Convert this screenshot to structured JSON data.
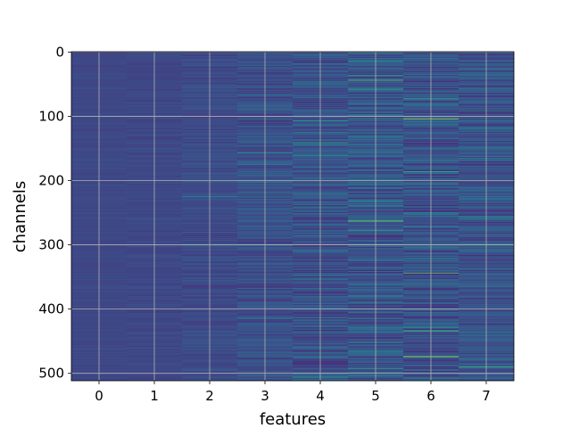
{
  "chart_data": {
    "type": "heatmap",
    "title": "",
    "xlabel": "features",
    "ylabel": "channels",
    "n_rows": 512,
    "x_categories": [
      "0",
      "1",
      "2",
      "3",
      "4",
      "5",
      "6",
      "7"
    ],
    "y_ticks": [
      0,
      100,
      200,
      300,
      400,
      500
    ],
    "y_tick_labels": [
      "0",
      "100",
      "200",
      "300",
      "400",
      "500"
    ],
    "ylim": [
      511.5,
      -0.5
    ],
    "grid": true,
    "colormap": "viridis",
    "column_baseline": [
      0.22,
      0.22,
      0.23,
      0.25,
      0.26,
      0.27,
      0.26,
      0.26
    ],
    "column_noise": [
      0.02,
      0.03,
      0.05,
      0.09,
      0.11,
      0.13,
      0.12,
      0.11
    ],
    "highlights": [
      {
        "feature": 5,
        "channel": 44,
        "value": 0.7
      },
      {
        "feature": 5,
        "channel": 58,
        "value": 0.6
      },
      {
        "feature": 5,
        "channel": 263,
        "value": 0.75
      },
      {
        "feature": 5,
        "channel": 278,
        "value": 0.65
      },
      {
        "feature": 5,
        "channel": 405,
        "value": 0.55
      },
      {
        "feature": 5,
        "channel": 493,
        "value": 0.6
      },
      {
        "feature": 6,
        "channel": 72,
        "value": 0.6
      },
      {
        "feature": 6,
        "channel": 104,
        "value": 0.95
      },
      {
        "feature": 6,
        "channel": 186,
        "value": 0.6
      },
      {
        "feature": 6,
        "channel": 344,
        "value": 0.85
      },
      {
        "feature": 6,
        "channel": 435,
        "value": 0.75
      },
      {
        "feature": 6,
        "channel": 474,
        "value": 0.8
      },
      {
        "feature": 7,
        "channel": 92,
        "value": 0.55
      },
      {
        "feature": 7,
        "channel": 256,
        "value": 0.6
      },
      {
        "feature": 7,
        "channel": 400,
        "value": 0.5
      },
      {
        "feature": 7,
        "channel": 490,
        "value": 0.65
      },
      {
        "feature": 4,
        "channel": 107,
        "value": 0.5
      },
      {
        "feature": 4,
        "channel": 141,
        "value": 0.55
      },
      {
        "feature": 4,
        "channel": 221,
        "value": 0.5
      },
      {
        "feature": 4,
        "channel": 237,
        "value": 0.45
      },
      {
        "feature": 3,
        "channel": 157,
        "value": 0.45
      },
      {
        "feature": 2,
        "channel": 225,
        "value": 0.4
      }
    ]
  }
}
